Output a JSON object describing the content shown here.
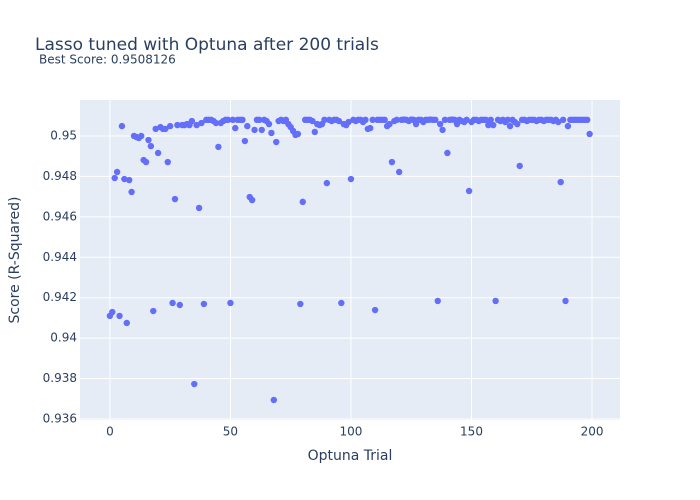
{
  "chart_data": {
    "type": "scatter",
    "title": "Lasso tuned with Optuna after 200 trials",
    "subtitle": "Best Score: 0.9508126",
    "x_label": "Optuna Trial",
    "y_label": "Score (R-Squared)",
    "color": "#636efa",
    "grid": true,
    "xlim": [
      -12.4,
      211.6
    ],
    "xticks": [
      0,
      50,
      100,
      150,
      200
    ],
    "ylim": [
      0.93595,
      0.95178
    ],
    "yticks": [
      0.936,
      0.938,
      0.94,
      0.942,
      0.944,
      0.946,
      0.948,
      0.95
    ],
    "x": [
      0,
      1,
      2,
      3,
      4,
      5,
      6,
      7,
      8,
      9,
      10,
      11,
      12,
      13,
      14,
      15,
      16,
      17,
      18,
      19,
      20,
      21,
      22,
      23,
      24,
      25,
      26,
      27,
      28,
      29,
      30,
      31,
      32,
      33,
      34,
      35,
      36,
      37,
      38,
      39,
      40,
      41,
      42,
      43,
      44,
      45,
      46,
      47,
      48,
      49,
      50,
      51,
      52,
      53,
      54,
      55,
      56,
      57,
      58,
      59,
      60,
      61,
      62,
      63,
      64,
      65,
      66,
      67,
      68,
      69,
      70,
      71,
      72,
      73,
      74,
      75,
      76,
      77,
      78,
      79,
      80,
      81,
      82,
      83,
      84,
      85,
      86,
      87,
      88,
      89,
      90,
      91,
      92,
      93,
      94,
      95,
      96,
      97,
      98,
      99,
      100,
      101,
      102,
      103,
      104,
      105,
      106,
      107,
      108,
      109,
      110,
      111,
      112,
      113,
      114,
      115,
      116,
      117,
      118,
      119,
      120,
      121,
      122,
      123,
      124,
      125,
      126,
      127,
      128,
      129,
      130,
      131,
      132,
      133,
      134,
      135,
      136,
      137,
      138,
      139,
      140,
      141,
      142,
      143,
      144,
      145,
      146,
      147,
      148,
      149,
      150,
      151,
      152,
      153,
      154,
      155,
      156,
      157,
      158,
      159,
      160,
      161,
      162,
      163,
      164,
      165,
      166,
      167,
      168,
      169,
      170,
      171,
      172,
      173,
      174,
      175,
      176,
      177,
      178,
      179,
      180,
      181,
      182,
      183,
      184,
      185,
      186,
      187,
      188,
      189,
      190,
      191,
      192,
      193,
      194,
      195,
      196,
      197,
      198,
      199
    ],
    "values": [
      0.9411,
      0.94129,
      0.94792,
      0.94822,
      0.9411,
      0.95049,
      0.94787,
      0.94075,
      0.94782,
      0.94723,
      0.95,
      0.94995,
      0.9499,
      0.95,
      0.94881,
      0.94871,
      0.9498,
      0.9495,
      0.94134,
      0.95035,
      0.94916,
      0.95044,
      0.95035,
      0.95035,
      0.94871,
      0.95049,
      0.94174,
      0.94688,
      0.95054,
      0.94164,
      0.95054,
      0.95054,
      0.95059,
      0.95054,
      0.95074,
      0.93773,
      0.95054,
      0.94644,
      0.95064,
      0.94169,
      0.9508,
      0.9508,
      0.9508,
      0.95074,
      0.95064,
      0.94946,
      0.95064,
      0.95074,
      0.9508,
      0.9508,
      0.94174,
      0.9508,
      0.95039,
      0.9508,
      0.9508,
      0.9508,
      0.94975,
      0.95049,
      0.94698,
      0.94683,
      0.9503,
      0.9508,
      0.9508,
      0.9503,
      0.9508,
      0.95074,
      0.95059,
      0.95015,
      0.93694,
      0.9497,
      0.95074,
      0.9508,
      0.95074,
      0.9508,
      0.95059,
      0.95044,
      0.95025,
      0.95005,
      0.9501,
      0.94169,
      0.94674,
      0.9508,
      0.9508,
      0.9508,
      0.95074,
      0.9502,
      0.95059,
      0.95054,
      0.95059,
      0.9508,
      0.94767,
      0.9508,
      0.95074,
      0.9508,
      0.9508,
      0.95074,
      0.94174,
      0.95059,
      0.95054,
      0.95069,
      0.94787,
      0.9508,
      0.95074,
      0.9508,
      0.9508,
      0.95069,
      0.9508,
      0.95035,
      0.95039,
      0.9508,
      0.94139,
      0.9508,
      0.9508,
      0.9508,
      0.9508,
      0.95049,
      0.95059,
      0.94871,
      0.95074,
      0.9508,
      0.94822,
      0.9508,
      0.95081,
      0.9508,
      0.95074,
      0.95081,
      0.9508,
      0.95059,
      0.9508,
      0.9508,
      0.95069,
      0.9508,
      0.9508,
      0.95081,
      0.9508,
      0.9508,
      0.94184,
      0.95059,
      0.9503,
      0.9508,
      0.94916,
      0.9508,
      0.95081,
      0.9508,
      0.95059,
      0.9508,
      0.95074,
      0.95069,
      0.9508,
      0.94728,
      0.95069,
      0.9508,
      0.9508,
      0.95074,
      0.9508,
      0.9508,
      0.9508,
      0.95054,
      0.9508,
      0.95054,
      0.94184,
      0.9508,
      0.95074,
      0.9508,
      0.95069,
      0.9508,
      0.95049,
      0.9508,
      0.95069,
      0.95059,
      0.94852,
      0.9508,
      0.9508,
      0.95074,
      0.9508,
      0.9508,
      0.9508,
      0.95074,
      0.9508,
      0.9508,
      0.95074,
      0.9508,
      0.9508,
      0.9508,
      0.95074,
      0.9508,
      0.95069,
      0.94772,
      0.9508,
      0.94184,
      0.95049,
      0.9508,
      0.9508,
      0.9508,
      0.9508,
      0.9508,
      0.9508,
      0.9508,
      0.9508,
      0.9501
    ]
  }
}
